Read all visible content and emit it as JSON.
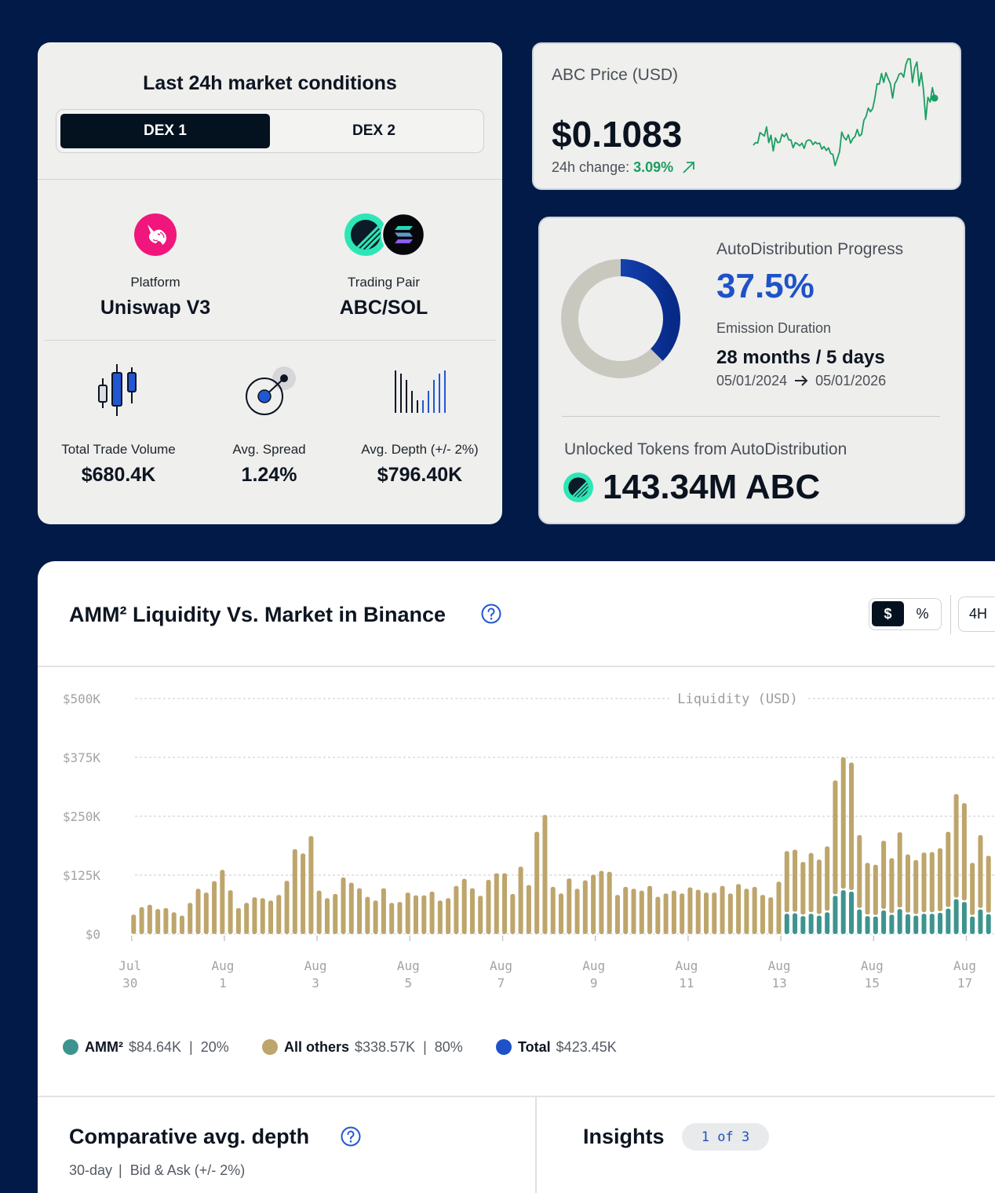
{
  "market_card": {
    "title": "Last 24h market conditions",
    "tabs": [
      {
        "label": "DEX 1",
        "active": true
      },
      {
        "label": "DEX 2",
        "active": false
      }
    ],
    "platform": {
      "label": "Platform",
      "value": "Uniswap V3",
      "icon": "uniswap-unicorn-icon"
    },
    "trading_pair": {
      "label": "Trading Pair",
      "value": "ABC/SOL",
      "icons": [
        "abc-token-icon",
        "sol-token-icon"
      ]
    },
    "stats": [
      {
        "label": "Total Trade Volume",
        "value": "$680.4K",
        "icon": "candlestick-icon"
      },
      {
        "label": "Avg. Spread",
        "value": "1.24%",
        "icon": "spread-target-icon"
      },
      {
        "label": "Avg. Depth (+/- 2%)",
        "value": "$796.40K",
        "icon": "depth-bars-icon"
      }
    ]
  },
  "price_card": {
    "title": "ABC Price (USD)",
    "price": "$0.1083",
    "change_label": "24h change:",
    "change_value": "3.09%",
    "change_direction": "up",
    "colors": {
      "positive": "#1a9e62"
    },
    "sparkline": [
      90,
      100,
      98,
      138,
      132,
      125,
      160,
      100,
      128,
      68,
      118,
      100,
      102,
      132,
      122,
      135,
      110,
      110,
      80,
      100,
      95,
      88,
      98,
      78,
      105,
      110,
      108,
      92,
      102,
      95,
      98,
      75,
      85,
      70,
      80,
      58,
      55,
      12,
      38,
      65,
      140,
      120,
      110,
      130,
      98,
      115,
      123,
      150,
      125,
      132,
      185,
      200,
      232,
      218,
      230,
      270,
      325,
      323,
      364,
      330,
      367,
      345,
      325,
      270,
      325,
      340,
      362,
      365,
      350,
      398,
      420,
      419,
      330,
      385,
      408,
      317,
      367,
      300,
      188,
      273,
      255,
      310,
      270
    ]
  },
  "distribution_card": {
    "title": "AutoDistribution Progress",
    "progress_text": "37.5%",
    "progress_percent": 37.5,
    "emission_label": "Emission Duration",
    "emission_value": "28 months / 5 days",
    "start_date": "05/01/2024",
    "end_date": "05/01/2026",
    "unlocked_label": "Unlocked Tokens from AutoDistribution",
    "unlocked_value": "143.34M ABC",
    "colors": {
      "progress": "#1f52c9",
      "remaining": "#c9c8bf"
    }
  },
  "liquidity_card": {
    "unit_toggle": [
      {
        "label": "$",
        "active": true
      },
      {
        "label": "%",
        "active": false
      }
    ],
    "interval": "4H"
  },
  "depth_section": {
    "title": "Comparative avg. depth",
    "period": "30-day",
    "separator": "|",
    "scope": "Bid & Ask (+/- 2%)"
  },
  "insights": {
    "title": "Insights",
    "badge": "1 of 3"
  },
  "chart_data": {
    "type": "bar",
    "stacked": true,
    "title": "AMM² Liquidity Vs. Market in Binance",
    "xlabel": "",
    "ylabel": "Liquidity (USD)",
    "ylim": [
      0,
      500
    ],
    "y_unit": "K USD",
    "y_tick_values": [
      0,
      125,
      250,
      375,
      500
    ],
    "y_ticks": [
      "$0",
      "$125K",
      "$250K",
      "$375K",
      "$500K"
    ],
    "grid": true,
    "x_ticks": [
      {
        "month": "Jul",
        "day": "30",
        "offset_days": 0
      },
      {
        "month": "Aug",
        "day": "1",
        "offset_days": 2
      },
      {
        "month": "Aug",
        "day": "3",
        "offset_days": 4
      },
      {
        "month": "Aug",
        "day": "5",
        "offset_days": 6
      },
      {
        "month": "Aug",
        "day": "7",
        "offset_days": 8
      },
      {
        "month": "Aug",
        "day": "9",
        "offset_days": 10
      },
      {
        "month": "Aug",
        "day": "11",
        "offset_days": 12
      },
      {
        "month": "Aug",
        "day": "13",
        "offset_days": 14
      },
      {
        "month": "Aug",
        "day": "15",
        "offset_days": 16
      },
      {
        "month": "Aug",
        "day": "17",
        "offset_days": 18
      }
    ],
    "bar_first_offset_days": 0.044,
    "bar_step_days": 0.1739,
    "series": [
      {
        "name": "AMM²",
        "color": "#3d948e",
        "values": [
          0,
          0,
          0,
          0,
          0,
          0,
          0,
          0,
          0,
          0,
          0,
          0,
          0,
          0,
          0,
          0,
          0,
          0,
          0,
          0,
          0,
          0,
          0,
          0,
          0,
          0,
          0,
          0,
          0,
          0,
          0,
          0,
          0,
          0,
          0,
          0,
          0,
          0,
          0,
          0,
          0,
          0,
          0,
          0,
          0,
          0,
          0,
          0,
          0,
          0,
          0,
          0,
          0,
          0,
          0,
          0,
          0,
          0,
          0,
          0,
          0,
          0,
          0,
          0,
          0,
          0,
          0,
          0,
          0,
          0,
          0,
          0,
          0,
          0,
          0,
          0,
          0,
          0,
          0,
          0,
          0,
          43,
          44,
          38,
          43,
          39,
          46,
          81,
          93,
          90,
          52,
          38,
          37,
          50,
          41,
          53,
          42,
          39,
          43,
          43,
          45,
          54,
          74,
          68,
          37,
          52,
          42
        ]
      },
      {
        "name": "All others",
        "color": "#bda56b",
        "values": [
          41,
          57,
          62,
          53,
          55,
          46,
          39,
          66,
          96,
          88,
          112,
          136,
          93,
          55,
          66,
          78,
          76,
          71,
          83,
          113,
          180,
          171,
          208,
          92,
          76,
          85,
          120,
          109,
          97,
          79,
          71,
          97,
          66,
          68,
          88,
          82,
          82,
          90,
          71,
          76,
          102,
          117,
          97,
          81,
          115,
          129,
          129,
          85,
          143,
          104,
          217,
          253,
          100,
          86,
          118,
          96,
          114,
          126,
          134,
          132,
          83,
          100,
          96,
          92,
          102,
          79,
          86,
          92,
          86,
          99,
          94,
          88,
          88,
          102,
          86,
          106,
          96,
          100,
          83,
          78,
          111,
          133,
          135,
          115,
          129,
          119,
          140,
          245,
          282,
          274,
          158,
          113,
          110,
          148,
          120,
          163,
          127,
          118,
          130,
          131,
          137,
          163,
          223,
          210,
          114,
          158,
          124
        ]
      }
    ],
    "legend_position": "bottom-left",
    "legend": [
      {
        "name": "AMM²",
        "value": "$84.64K",
        "separator": "|",
        "share": "20%",
        "color": "#3d948e"
      },
      {
        "name": "All others",
        "value": "$338.57K",
        "separator": "|",
        "share": "80%",
        "color": "#bda56b"
      },
      {
        "name": "Total",
        "value": "$423.45K",
        "color": "#1f52c9"
      }
    ]
  }
}
